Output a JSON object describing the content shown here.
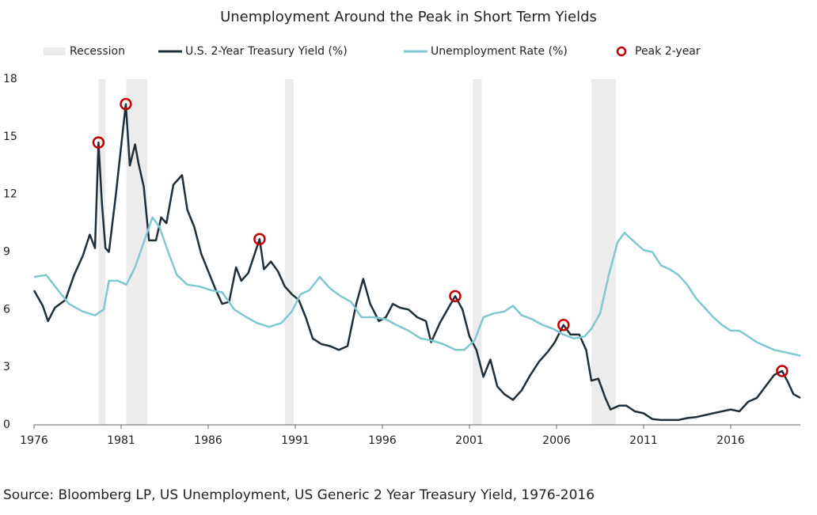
{
  "chart_data": {
    "type": "line",
    "title": "Unemployment Around the Peak in Short Term Yields",
    "source": "Source: Bloomberg LP, US Unemployment, US Generic 2 Year Treasury Yield, 1976-2016",
    "xlim": [
      1976,
      2020
    ],
    "ylim": [
      0,
      18
    ],
    "xticks": [
      1976,
      1981,
      1986,
      1991,
      1996,
      2001,
      2006,
      2011,
      2016
    ],
    "yticks": [
      0,
      3,
      6,
      9,
      12,
      15,
      18
    ],
    "recessions": {
      "name": "Recession",
      "color": "#ececec",
      "periods": [
        [
          1979.7,
          1980.1
        ],
        [
          1981.3,
          1982.5
        ],
        [
          1990.4,
          1990.9
        ],
        [
          2001.2,
          2001.7
        ],
        [
          2008.0,
          2009.4
        ]
      ]
    },
    "series": [
      {
        "name": "U.S. 2-Year Treasury Yield (%)",
        "color": "#1f2f3a",
        "x": [
          1976.0,
          1976.5,
          1976.8,
          1977.2,
          1977.8,
          1978.3,
          1978.8,
          1979.2,
          1979.5,
          1979.7,
          1979.9,
          1980.1,
          1980.3,
          1980.7,
          1981.0,
          1981.27,
          1981.5,
          1981.8,
          1982.0,
          1982.3,
          1982.6,
          1983.0,
          1983.3,
          1983.6,
          1984.0,
          1984.5,
          1984.8,
          1985.2,
          1985.6,
          1986.0,
          1986.4,
          1986.8,
          1987.2,
          1987.6,
          1987.9,
          1988.3,
          1988.95,
          1989.2,
          1989.6,
          1990.0,
          1990.4,
          1990.8,
          1991.2,
          1991.6,
          1992.0,
          1992.5,
          1993.0,
          1993.5,
          1994.0,
          1994.5,
          1994.9,
          1995.3,
          1995.8,
          1996.2,
          1996.6,
          1997.0,
          1997.5,
          1998.0,
          1998.5,
          1998.8,
          1999.3,
          1999.8,
          2000.18,
          2000.6,
          2001.0,
          2001.4,
          2001.8,
          2002.2,
          2002.6,
          2003.0,
          2003.5,
          2004.0,
          2004.5,
          2005.0,
          2005.5,
          2005.9,
          2006.4,
          2006.8,
          2007.3,
          2007.7,
          2008.0,
          2008.4,
          2008.8,
          2009.1,
          2009.6,
          2010.0,
          2010.5,
          2011.0,
          2011.5,
          2012.0,
          2012.5,
          2013.0,
          2013.5,
          2014.0,
          2014.5,
          2015.0,
          2015.5,
          2016.0,
          2016.5,
          2017.0,
          2017.5,
          2018.0,
          2018.5,
          2018.95,
          2019.3,
          2019.6,
          2020.0
        ],
        "values": [
          7.0,
          6.2,
          5.4,
          6.1,
          6.5,
          7.8,
          8.8,
          9.9,
          9.2,
          14.7,
          11.5,
          9.2,
          9.0,
          12.0,
          14.5,
          16.7,
          13.5,
          14.6,
          13.6,
          12.4,
          9.6,
          9.6,
          10.8,
          10.5,
          12.5,
          13.0,
          11.2,
          10.3,
          8.9,
          8.0,
          7.1,
          6.3,
          6.4,
          8.2,
          7.5,
          7.9,
          9.67,
          8.1,
          8.5,
          8.0,
          7.2,
          6.8,
          6.5,
          5.6,
          4.5,
          4.2,
          4.1,
          3.9,
          4.1,
          6.3,
          7.6,
          6.3,
          5.4,
          5.6,
          6.3,
          6.1,
          6.0,
          5.6,
          5.4,
          4.3,
          5.3,
          6.1,
          6.7,
          6.0,
          4.6,
          3.9,
          2.5,
          3.4,
          2.0,
          1.6,
          1.3,
          1.8,
          2.6,
          3.3,
          3.8,
          4.3,
          5.2,
          4.7,
          4.7,
          3.9,
          2.3,
          2.4,
          1.4,
          0.8,
          1.0,
          1.0,
          0.7,
          0.6,
          0.3,
          0.25,
          0.25,
          0.25,
          0.35,
          0.4,
          0.5,
          0.6,
          0.7,
          0.8,
          0.7,
          1.2,
          1.4,
          2.0,
          2.6,
          2.8,
          2.2,
          1.6,
          1.4
        ]
      },
      {
        "name": "Unemployment Rate (%)",
        "color": "#7fc8d0",
        "x": [
          1976.0,
          1976.7,
          1977.3,
          1978.0,
          1978.8,
          1979.5,
          1980.0,
          1980.3,
          1980.8,
          1981.3,
          1981.8,
          1982.3,
          1982.8,
          1983.2,
          1983.7,
          1984.2,
          1984.8,
          1985.5,
          1986.2,
          1986.8,
          1987.5,
          1988.2,
          1988.8,
          1989.5,
          1990.2,
          1990.8,
          1991.3,
          1991.8,
          1992.4,
          1993.0,
          1993.6,
          1994.2,
          1994.8,
          1995.5,
          1996.2,
          1996.8,
          1997.5,
          1998.2,
          1998.8,
          1999.5,
          2000.2,
          2000.7,
          2001.3,
          2001.8,
          2002.4,
          2003.0,
          2003.5,
          2004.0,
          2004.6,
          2005.2,
          2005.8,
          2006.4,
          2007.0,
          2007.6,
          2008.0,
          2008.5,
          2009.0,
          2009.5,
          2009.9,
          2010.5,
          2011.0,
          2011.5,
          2012.0,
          2012.5,
          2013.0,
          2013.5,
          2014.0,
          2014.5,
          2015.0,
          2015.5,
          2016.0,
          2016.5,
          2017.0,
          2017.5,
          2018.0,
          2018.5,
          2019.0,
          2019.5,
          2020.0
        ],
        "values": [
          7.7,
          7.8,
          7.1,
          6.3,
          5.9,
          5.7,
          6.0,
          7.5,
          7.5,
          7.3,
          8.2,
          9.5,
          10.8,
          10.3,
          9.0,
          7.8,
          7.3,
          7.2,
          7.0,
          6.9,
          6.0,
          5.6,
          5.3,
          5.1,
          5.3,
          5.9,
          6.8,
          7.0,
          7.7,
          7.1,
          6.7,
          6.4,
          5.6,
          5.6,
          5.5,
          5.2,
          4.9,
          4.5,
          4.4,
          4.2,
          3.9,
          3.9,
          4.4,
          5.6,
          5.8,
          5.9,
          6.2,
          5.7,
          5.5,
          5.2,
          5.0,
          4.7,
          4.5,
          4.6,
          5.0,
          5.8,
          7.8,
          9.5,
          10.0,
          9.5,
          9.1,
          9.0,
          8.3,
          8.1,
          7.8,
          7.3,
          6.6,
          6.1,
          5.6,
          5.2,
          4.9,
          4.9,
          4.6,
          4.3,
          4.1,
          3.9,
          3.8,
          3.7,
          3.6
        ]
      },
      {
        "name": "Peak 2-year",
        "color": "#c00000",
        "type": "scatter",
        "x": [
          1979.7,
          1981.27,
          1988.95,
          2000.18,
          2006.4,
          2018.95
        ],
        "values": [
          14.7,
          16.7,
          9.67,
          6.7,
          5.2,
          2.8
        ]
      }
    ]
  }
}
